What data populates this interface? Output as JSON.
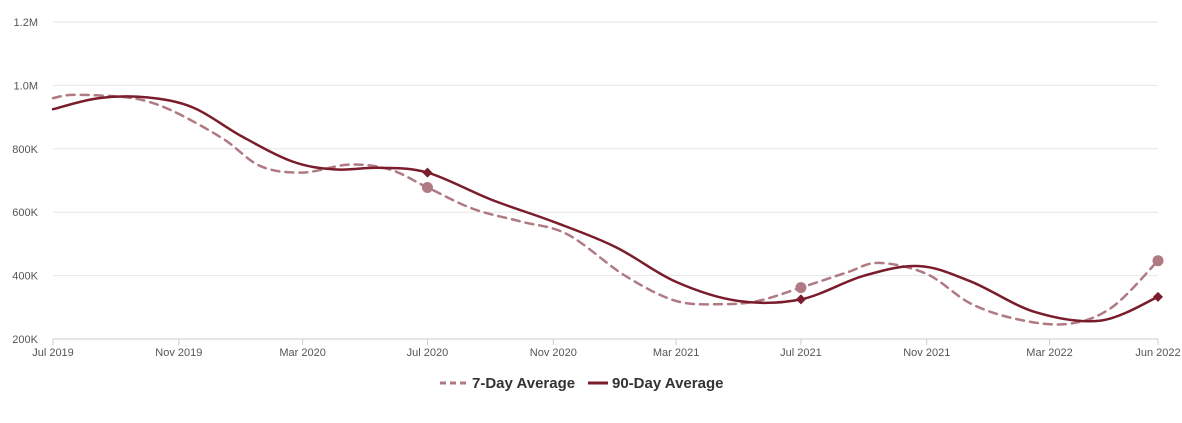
{
  "chart_data": {
    "type": "line",
    "title": "",
    "xlabel": "",
    "ylabel": "",
    "ylim": [
      200000,
      1200000
    ],
    "xlim": [
      "2019-07-01",
      "2022-06-15"
    ],
    "grid": true,
    "legend_position": "bottom-center",
    "y_ticks": [
      {
        "value": 200000,
        "label": "200K"
      },
      {
        "value": 400000,
        "label": "400K"
      },
      {
        "value": 600000,
        "label": "600K"
      },
      {
        "value": 800000,
        "label": "800K"
      },
      {
        "value": 1000000,
        "label": "1.0M"
      },
      {
        "value": 1200000,
        "label": "1.2M"
      }
    ],
    "x_ticks": [
      {
        "date": "2019-07-01",
        "label": "Jul 2019"
      },
      {
        "date": "2019-11-01",
        "label": "Nov 2019"
      },
      {
        "date": "2020-03-01",
        "label": "Mar 2020"
      },
      {
        "date": "2020-07-01",
        "label": "Jul 2020"
      },
      {
        "date": "2020-11-01",
        "label": "Nov 2020"
      },
      {
        "date": "2021-03-01",
        "label": "Mar 2021"
      },
      {
        "date": "2021-07-01",
        "label": "Jul 2021"
      },
      {
        "date": "2021-11-01",
        "label": "Nov 2021"
      },
      {
        "date": "2022-03-01",
        "label": "Mar 2022"
      },
      {
        "date": "2022-06-15",
        "label": "Jun 2022"
      }
    ],
    "series": [
      {
        "name": "7-Day Average",
        "color": "#b07a83",
        "style": "dashed",
        "marker": "circle",
        "points": [
          {
            "x": "2019-07-01",
            "y": 960000
          },
          {
            "x": "2019-07-20",
            "y": 970000
          },
          {
            "x": "2019-09-01",
            "y": 965000
          },
          {
            "x": "2019-10-01",
            "y": 950000
          },
          {
            "x": "2019-11-01",
            "y": 910000
          },
          {
            "x": "2019-12-15",
            "y": 830000
          },
          {
            "x": "2020-01-20",
            "y": 745000
          },
          {
            "x": "2020-03-01",
            "y": 725000
          },
          {
            "x": "2020-04-15",
            "y": 750000
          },
          {
            "x": "2020-05-25",
            "y": 735000
          },
          {
            "x": "2020-07-01",
            "y": 678000
          },
          {
            "x": "2020-08-15",
            "y": 610000
          },
          {
            "x": "2020-10-01",
            "y": 570000
          },
          {
            "x": "2020-11-15",
            "y": 530000
          },
          {
            "x": "2021-01-10",
            "y": 400000
          },
          {
            "x": "2021-03-01",
            "y": 320000
          },
          {
            "x": "2021-04-15",
            "y": 310000
          },
          {
            "x": "2021-05-20",
            "y": 320000
          },
          {
            "x": "2021-07-01",
            "y": 362000
          },
          {
            "x": "2021-08-15",
            "y": 410000
          },
          {
            "x": "2021-09-15",
            "y": 440000
          },
          {
            "x": "2021-11-01",
            "y": 405000
          },
          {
            "x": "2021-12-15",
            "y": 310000
          },
          {
            "x": "2022-02-01",
            "y": 260000
          },
          {
            "x": "2022-03-20",
            "y": 248000
          },
          {
            "x": "2022-05-01",
            "y": 300000
          },
          {
            "x": "2022-06-15",
            "y": 447000
          }
        ],
        "highlighted": [
          {
            "x": "2020-07-01",
            "y": 678000
          },
          {
            "x": "2021-07-01",
            "y": 362000
          },
          {
            "x": "2022-06-15",
            "y": 447000
          }
        ]
      },
      {
        "name": "90-Day Average",
        "color": "#7a1c2b",
        "style": "solid",
        "marker": "diamond",
        "points": [
          {
            "x": "2019-07-01",
            "y": 925000
          },
          {
            "x": "2019-08-15",
            "y": 960000
          },
          {
            "x": "2019-10-01",
            "y": 962000
          },
          {
            "x": "2019-11-15",
            "y": 930000
          },
          {
            "x": "2020-01-01",
            "y": 840000
          },
          {
            "x": "2020-02-20",
            "y": 760000
          },
          {
            "x": "2020-04-01",
            "y": 735000
          },
          {
            "x": "2020-05-15",
            "y": 740000
          },
          {
            "x": "2020-07-01",
            "y": 725000
          },
          {
            "x": "2020-09-01",
            "y": 640000
          },
          {
            "x": "2020-11-01",
            "y": 570000
          },
          {
            "x": "2021-01-01",
            "y": 490000
          },
          {
            "x": "2021-03-01",
            "y": 380000
          },
          {
            "x": "2021-05-01",
            "y": 320000
          },
          {
            "x": "2021-07-01",
            "y": 325000
          },
          {
            "x": "2021-09-01",
            "y": 400000
          },
          {
            "x": "2021-10-25",
            "y": 430000
          },
          {
            "x": "2021-12-15",
            "y": 380000
          },
          {
            "x": "2022-02-15",
            "y": 285000
          },
          {
            "x": "2022-04-20",
            "y": 258000
          },
          {
            "x": "2022-06-15",
            "y": 333000
          }
        ],
        "highlighted": [
          {
            "x": "2020-07-01",
            "y": 725000
          },
          {
            "x": "2021-07-01",
            "y": 325000
          },
          {
            "x": "2022-06-15",
            "y": 333000
          }
        ]
      }
    ]
  }
}
